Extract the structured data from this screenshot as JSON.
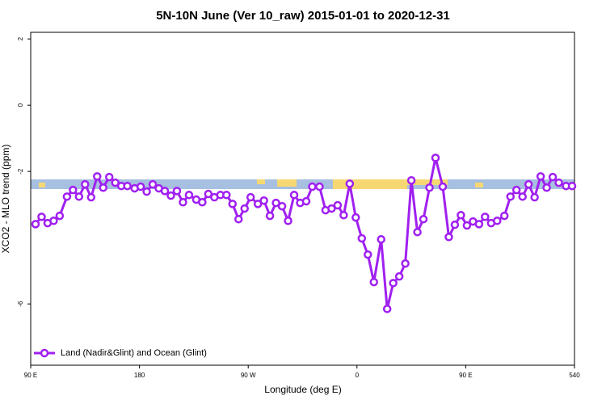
{
  "chart_data": {
    "type": "line",
    "title": "5N-10N June (Ver 10_raw)   2015-01-01 to 2020-12-31",
    "x_label": "Longitude (deg E)",
    "y_label": "XCO2 - MLO trend (ppm)",
    "xlim": [
      90,
      540
    ],
    "ylim": [
      -7.85,
      2.2
    ],
    "xticks": [
      {
        "value": 90,
        "label": "90 E"
      },
      180,
      {
        "value": 270,
        "label": "90 W"
      },
      {
        "value": 360,
        "label": "0"
      },
      {
        "value": 450,
        "label": "90 E"
      },
      540
    ],
    "yticks": [
      -6,
      -2,
      0,
      2
    ],
    "x": [
      94,
      99,
      104,
      109,
      114,
      120,
      125,
      130,
      135,
      140,
      145,
      150,
      155,
      160,
      165,
      170,
      176,
      181,
      186,
      191,
      196,
      201,
      206,
      211,
      216,
      221,
      227,
      232,
      237,
      242,
      247,
      252,
      257,
      262,
      267,
      272,
      278,
      283,
      288,
      293,
      298,
      303,
      308,
      313,
      318,
      323,
      329,
      334,
      339,
      344,
      349,
      354,
      359,
      364,
      369,
      374,
      380,
      385,
      390,
      395,
      400,
      405,
      410,
      415,
      420,
      425,
      431,
      436,
      441,
      446,
      451,
      456,
      461,
      466,
      471,
      476,
      482,
      487,
      492,
      497,
      502,
      507,
      512,
      517,
      522,
      527,
      533,
      538
    ],
    "series": [
      {
        "name": "Land (Nadir&Glint) and Ocean (Glint)",
        "color": "#a020f0",
        "values": [
          -3.59,
          -3.37,
          -3.56,
          -3.49,
          -3.34,
          -2.76,
          -2.56,
          -2.76,
          -2.39,
          -2.78,
          -2.15,
          -2.49,
          -2.17,
          -2.34,
          -2.44,
          -2.44,
          -2.51,
          -2.46,
          -2.61,
          -2.39,
          -2.51,
          -2.59,
          -2.73,
          -2.59,
          -2.93,
          -2.71,
          -2.85,
          -2.93,
          -2.68,
          -2.78,
          -2.71,
          -2.71,
          -2.98,
          -3.44,
          -3.12,
          -2.78,
          -2.98,
          -2.88,
          -3.34,
          -2.95,
          -3.05,
          -3.49,
          -2.71,
          -2.95,
          -2.9,
          -2.46,
          -2.46,
          -3.17,
          -3.12,
          -3.02,
          -3.32,
          -2.37,
          -3.39,
          -4.02,
          -4.51,
          -5.34,
          -4.05,
          -6.15,
          -5.37,
          -5.17,
          -4.78,
          -2.27,
          -3.83,
          -3.44,
          -2.49,
          -1.59,
          -2.46,
          -3.98,
          -3.61,
          -3.32,
          -3.63,
          -3.51,
          -3.59,
          -3.37,
          -3.56,
          -3.49,
          -3.34,
          -2.76,
          -2.56,
          -2.76,
          -2.39,
          -2.78,
          -2.15,
          -2.49,
          -2.17,
          -2.34,
          -2.44,
          -2.44
        ]
      }
    ]
  }
}
